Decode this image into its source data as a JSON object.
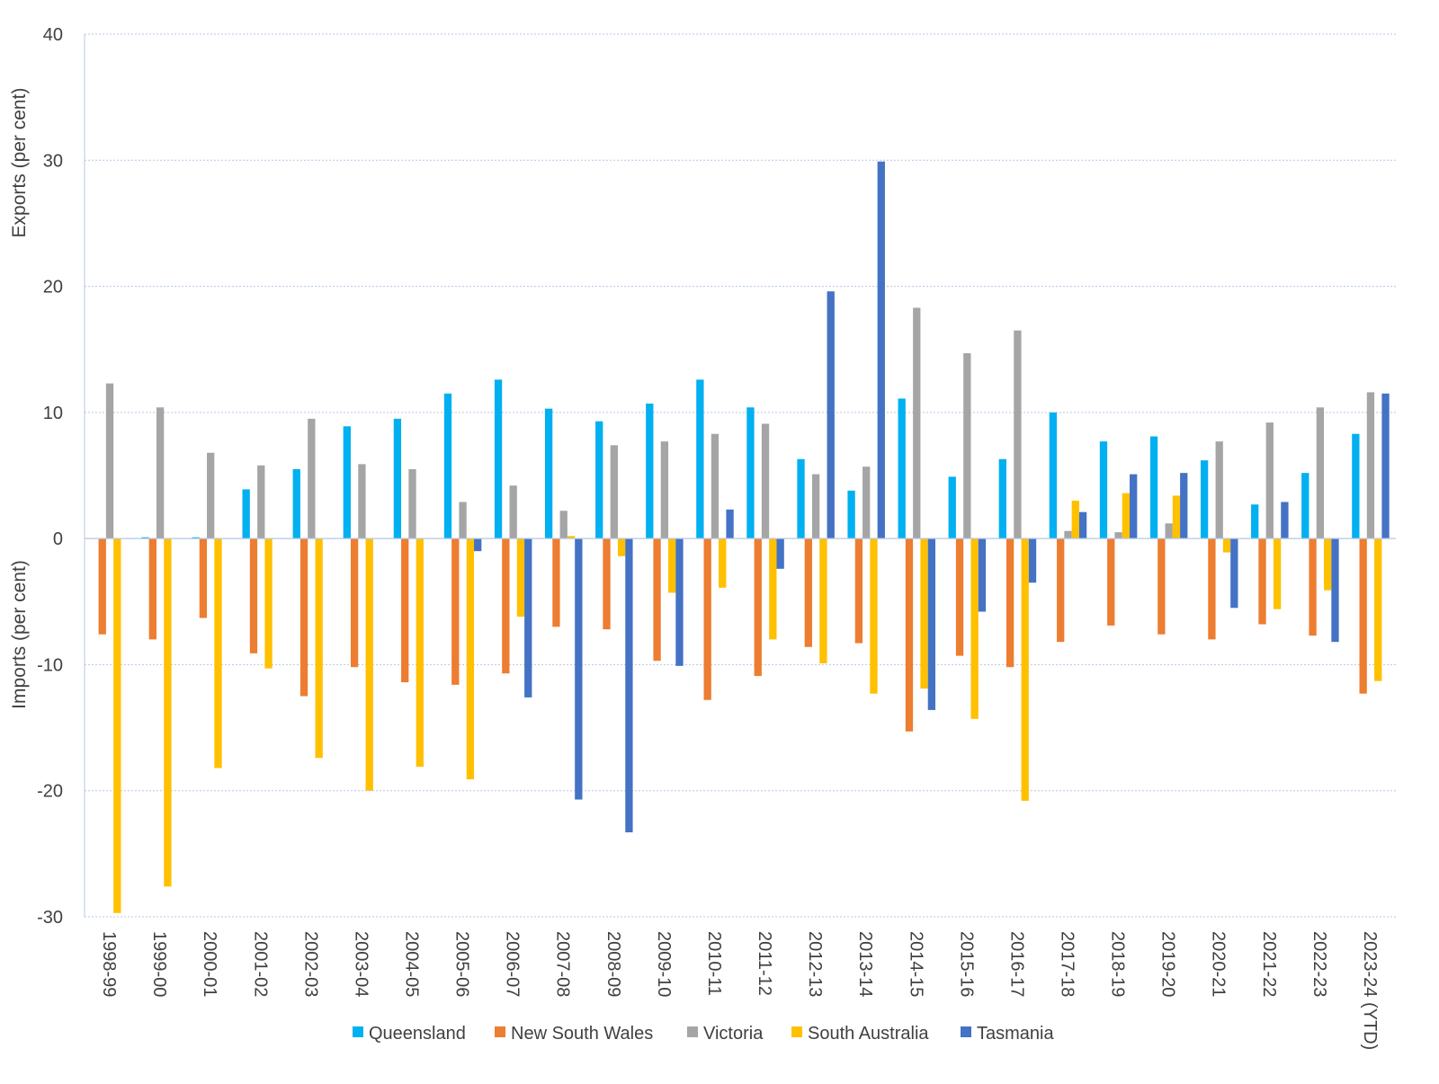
{
  "chart_data": {
    "type": "bar",
    "title": "",
    "ylabel_top": "Exports (per cent)",
    "ylabel_bottom": "Imports (per cent)",
    "xlabel": "",
    "ylim": [
      -30,
      40
    ],
    "yticks": [
      40,
      30,
      20,
      10,
      0,
      -10,
      -20,
      -30
    ],
    "grid": true,
    "legend_position": "bottom",
    "categories": [
      "1998-99",
      "1999-00",
      "2000-01",
      "2001-02",
      "2002-03",
      "2003-04",
      "2004-05",
      "2005-06",
      "2006-07",
      "2007-08",
      "2008-09",
      "2009-10",
      "2010-11",
      "2011-12",
      "2012-13",
      "2013-14",
      "2014-15",
      "2015-16",
      "2016-17",
      "2017-18",
      "2018-19",
      "2019-20",
      "2020-21",
      "2021-22",
      "2022-23",
      "2023-24 (YTD)"
    ],
    "series": [
      {
        "name": "Queensland",
        "color": "#00b0f0",
        "values": [
          0,
          0.1,
          0.1,
          3.9,
          5.5,
          8.9,
          9.5,
          11.5,
          12.6,
          10.3,
          9.3,
          10.7,
          12.6,
          10.4,
          6.3,
          3.8,
          11.1,
          4.9,
          6.3,
          10.0,
          7.7,
          8.1,
          6.2,
          2.7,
          5.2,
          8.3
        ]
      },
      {
        "name": "New South Wales",
        "color": "#ed7d31",
        "values": [
          -7.6,
          -8.0,
          -6.3,
          -9.1,
          -12.5,
          -10.2,
          -11.4,
          -11.6,
          -10.7,
          -7.0,
          -7.2,
          -9.7,
          -12.8,
          -10.9,
          -8.6,
          -8.3,
          -15.3,
          -9.3,
          -10.2,
          -8.2,
          -6.9,
          -7.6,
          -8.0,
          -6.8,
          -7.7,
          -12.3
        ]
      },
      {
        "name": "Victoria",
        "color": "#a5a5a5",
        "values": [
          12.3,
          10.4,
          6.8,
          5.8,
          9.5,
          5.9,
          5.5,
          2.9,
          4.2,
          2.2,
          7.4,
          7.7,
          8.3,
          9.1,
          5.1,
          5.7,
          18.3,
          14.7,
          16.5,
          0.6,
          0.5,
          1.2,
          7.7,
          9.2,
          10.4,
          11.6
        ]
      },
      {
        "name": "South Australia",
        "color": "#ffc000",
        "values": [
          -29.7,
          -27.6,
          -18.2,
          -10.3,
          -17.4,
          -20.0,
          -18.1,
          -19.1,
          -6.2,
          0.2,
          -1.4,
          -4.3,
          -3.9,
          -8.0,
          -9.9,
          -12.3,
          -11.9,
          -14.3,
          -20.8,
          3.0,
          3.6,
          3.4,
          -1.1,
          -5.6,
          -4.1,
          -11.3
        ]
      },
      {
        "name": "Tasmania",
        "color": "#4472c4",
        "values": [
          0,
          0,
          0,
          0,
          0,
          0,
          0,
          -1.0,
          -12.6,
          -20.7,
          -23.3,
          -10.1,
          2.3,
          -2.4,
          19.6,
          29.9,
          -13.6,
          -5.8,
          -3.5,
          2.1,
          5.1,
          5.2,
          -5.5,
          2.9,
          -8.2,
          11.5
        ]
      }
    ]
  }
}
